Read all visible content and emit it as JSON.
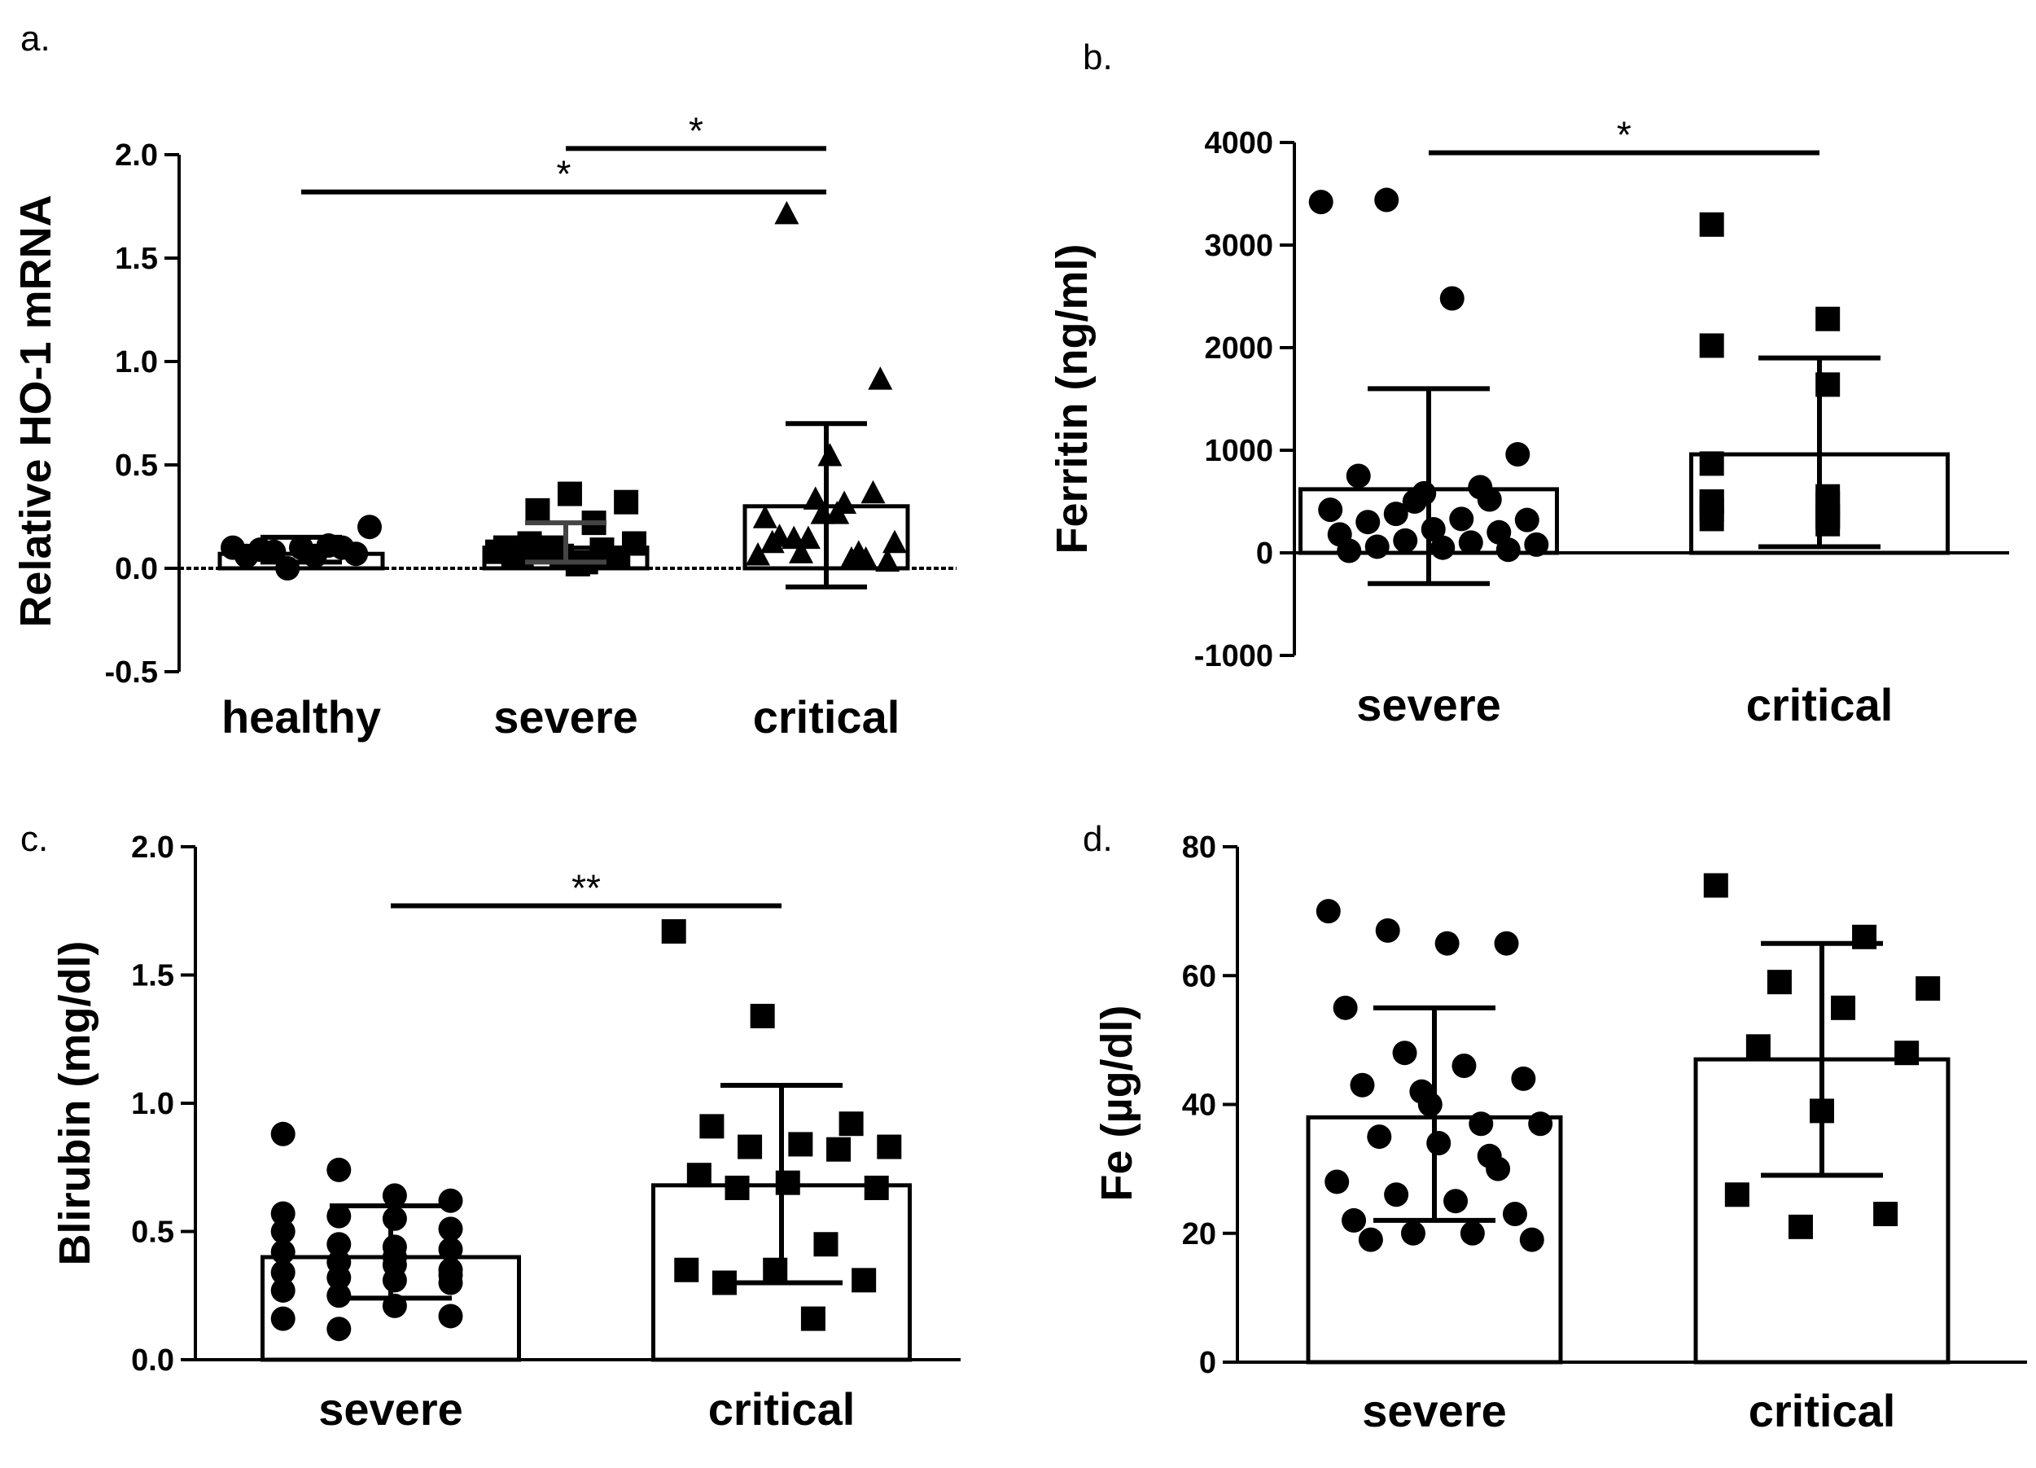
{
  "chart_data": [
    {
      "id": "a",
      "panel_label": "a.",
      "type": "bar",
      "ylabel": "Relative HO-1 mRNA",
      "ylim": [
        -0.5,
        2.0
      ],
      "yticks": [
        -0.5,
        0.0,
        0.5,
        1.0,
        1.5,
        2.0
      ],
      "ytick_labels": [
        "-0.5",
        "0.0",
        "0.5",
        "1.0",
        "1.5",
        "2.0"
      ],
      "baseline_dotted": true,
      "categories": [
        "healthy",
        "severe",
        "critical"
      ],
      "markers": [
        "circle",
        "square",
        "triangle"
      ],
      "bars": [
        {
          "mean": 0.07,
          "sd_low": 0.03,
          "sd_high": 0.15,
          "error_color": "#000000",
          "points": [
            0.1,
            0.11,
            0.08,
            0.2,
            0.06,
            0.09,
            0.07,
            0.1,
            0.06,
            0.1,
            0.0
          ]
        },
        {
          "mean": 0.1,
          "sd_low": 0.03,
          "sd_high": 0.22,
          "error_color": "#444444",
          "points": [
            0.08,
            0.1,
            0.05,
            0.06,
            0.02,
            0.12,
            0.08,
            0.09,
            0.05,
            0.36,
            0.32,
            0.28,
            0.22,
            0.1,
            0.06,
            0.05,
            0.12,
            0.03
          ]
        },
        {
          "mean": 0.3,
          "sd_low": -0.09,
          "sd_high": 0.7,
          "error_color": "#000000",
          "points": [
            0.07,
            0.15,
            0.08,
            0.25,
            0.34,
            0.05,
            0.13,
            0.27,
            0.37,
            0.16,
            0.55,
            0.92,
            1.72,
            0.27,
            0.04,
            0.15,
            0.32,
            0.13,
            0.08,
            0.05
          ]
        }
      ],
      "significance": [
        {
          "from": 1,
          "to": 2,
          "y": 2.03,
          "label": "*"
        },
        {
          "from": 0,
          "to": 2,
          "y": 1.82,
          "label": "*"
        }
      ]
    },
    {
      "id": "b",
      "panel_label": "b.",
      "type": "bar",
      "ylabel": "Ferritin (ng/ml)",
      "ylim": [
        -1000,
        4000
      ],
      "yticks": [
        -1000,
        0,
        1000,
        2000,
        3000,
        4000
      ],
      "ytick_labels": [
        "-1000",
        "0",
        "1000",
        "2000",
        "3000",
        "4000"
      ],
      "baseline_dotted": false,
      "categories": [
        "severe",
        "critical"
      ],
      "markers": [
        "circle",
        "square"
      ],
      "bars": [
        {
          "mean": 620,
          "sd_low": -300,
          "sd_high": 1600,
          "error_color": "#000000",
          "points": [
            3420,
            3440,
            2480,
            960,
            750,
            580,
            520,
            420,
            380,
            330,
            320,
            300,
            230,
            200,
            180,
            120,
            100,
            80,
            60,
            50,
            30,
            20,
            500,
            640
          ]
        },
        {
          "mean": 960,
          "sd_low": 60,
          "sd_high": 1900,
          "error_color": "#000000",
          "points": [
            3200,
            2280,
            2020,
            1640,
            870,
            550,
            500,
            480,
            420,
            360,
            330,
            280,
            500,
            350
          ]
        }
      ],
      "significance": [
        {
          "from": 0,
          "to": 1,
          "y": 3900,
          "label": "*"
        }
      ]
    },
    {
      "id": "c",
      "panel_label": "c.",
      "type": "bar",
      "ylabel": "Blirubin (mg/dl)",
      "ylim": [
        0.0,
        2.0
      ],
      "yticks": [
        0.0,
        0.5,
        1.0,
        1.5,
        2.0
      ],
      "ytick_labels": [
        "0.0",
        "0.5",
        "1.0",
        "1.5",
        "2.0"
      ],
      "baseline_dotted": false,
      "categories": [
        "severe",
        "critical"
      ],
      "markers": [
        "circle",
        "square"
      ],
      "bars": [
        {
          "mean": 0.4,
          "sd_low": 0.24,
          "sd_high": 0.6,
          "error_color": "#000000",
          "points": [
            0.88,
            0.74,
            0.64,
            0.62,
            0.57,
            0.56,
            0.55,
            0.51,
            0.5,
            0.45,
            0.44,
            0.43,
            0.42,
            0.38,
            0.37,
            0.35,
            0.34,
            0.32,
            0.31,
            0.3,
            0.27,
            0.25,
            0.21,
            0.17,
            0.16,
            0.12,
            0.4,
            0.33
          ]
        },
        {
          "mean": 0.68,
          "sd_low": 0.3,
          "sd_high": 1.07,
          "error_color": "#000000",
          "points": [
            1.67,
            1.34,
            0.92,
            0.91,
            0.84,
            0.83,
            0.83,
            0.82,
            0.72,
            0.69,
            0.67,
            0.67,
            0.45,
            0.35,
            0.35,
            0.31,
            0.3,
            0.16
          ]
        }
      ],
      "significance": [
        {
          "from": 0,
          "to": 1,
          "y": 1.77,
          "label": "**"
        }
      ]
    },
    {
      "id": "d",
      "panel_label": "d.",
      "type": "bar",
      "ylabel": "Fe (µg/dl)",
      "ylim": [
        0,
        80
      ],
      "yticks": [
        0,
        20,
        40,
        60,
        80
      ],
      "ytick_labels": [
        "0",
        "20",
        "40",
        "60",
        "80"
      ],
      "baseline_dotted": false,
      "categories": [
        "severe",
        "critical"
      ],
      "markers": [
        "circle",
        "square"
      ],
      "bars": [
        {
          "mean": 38,
          "sd_low": 22,
          "sd_high": 55,
          "error_color": "#000000",
          "points": [
            70,
            67,
            65,
            65,
            55,
            48,
            46,
            44,
            43,
            42,
            37,
            37,
            35,
            34,
            30,
            28,
            26,
            25,
            23,
            22,
            20,
            20,
            19,
            19,
            40,
            32
          ]
        },
        {
          "mean": 47,
          "sd_low": 29,
          "sd_high": 65,
          "error_color": "#000000",
          "points": [
            74,
            66,
            59,
            58,
            55,
            49,
            48,
            39,
            26,
            23,
            21
          ]
        }
      ],
      "significance": []
    }
  ]
}
